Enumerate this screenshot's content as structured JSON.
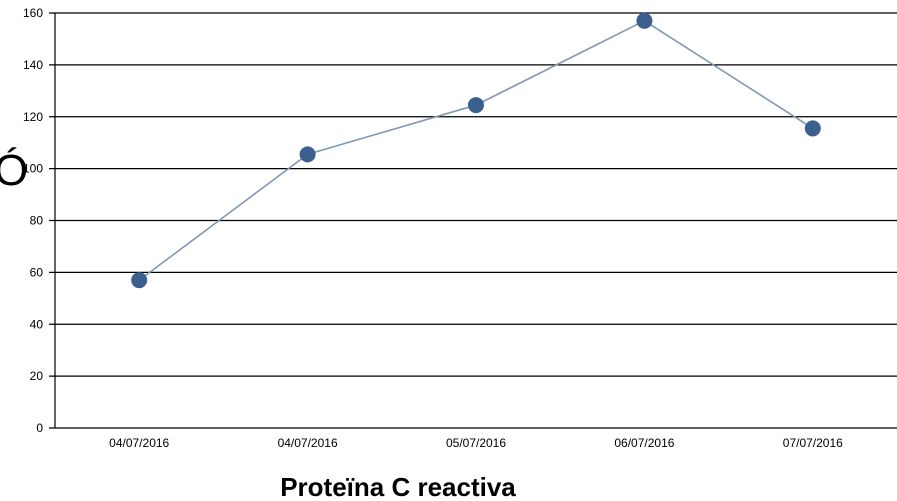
{
  "chart_data": {
    "type": "line",
    "categories": [
      "04/07/2016",
      "04/07/2016",
      "05/07/2016",
      "06/07/2016",
      "07/07/2016"
    ],
    "series": [
      {
        "values": [
          57,
          105.5,
          124.5,
          157,
          115.5
        ]
      }
    ],
    "xlabel": "Proteïna C reactiva",
    "ylabel": "",
    "ylim": [
      0,
      160
    ],
    "yticks": [
      0,
      20,
      40,
      60,
      80,
      100,
      120,
      140,
      160
    ],
    "grid": true,
    "legend": "none",
    "colors": {
      "line": "#7f98b5",
      "marker": "#3b5f8f",
      "grid": "#000000"
    }
  },
  "clipped_text": "Ó"
}
